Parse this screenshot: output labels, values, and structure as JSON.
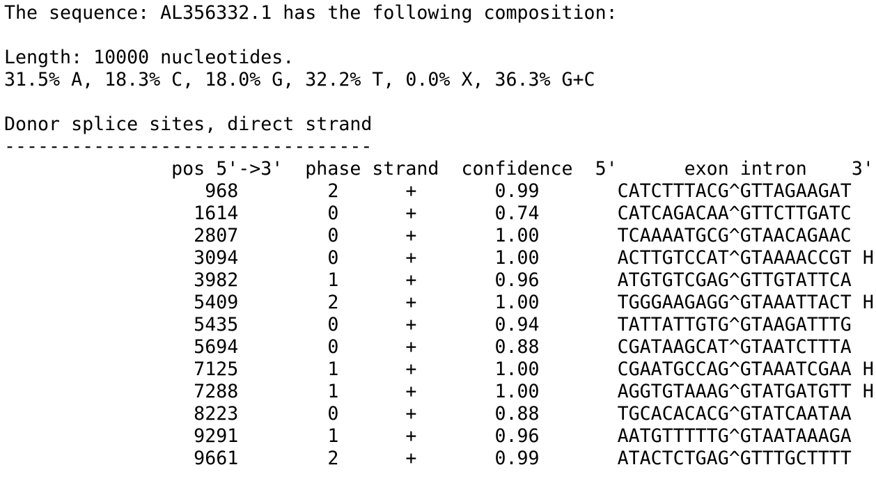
{
  "header": {
    "title_line": "The sequence: AL356332.1 has the following composition:",
    "length_line": "Length: 10000 nucleotides.",
    "composition_line": "31.5% A, 18.3% C, 18.0% G, 32.2% T, 0.0% X, 36.3% G+C"
  },
  "section": {
    "title": "Donor splice sites, direct strand",
    "underline": "---------------------------------"
  },
  "table": {
    "columns": [
      "pos 5'->3'",
      "phase",
      "strand",
      "confidence",
      "5'",
      "exon intron",
      "3'"
    ],
    "header_line": "               pos 5'->3'  phase strand  confidence  5'      exon intron    3'",
    "rows": [
      "                  968        2      +       0.99       CATCTTTACG^GTTAGAAGAT",
      "                 1614        0      +       0.74       CATCAGACAA^GTTCTTGATC",
      "                 2807        0      +       1.00       TCAAAATGCG^GTAACAGAAC",
      "                 3094        0      +       1.00       ACTTGTCCAT^GTAAAACCGT H",
      "                 3982        1      +       0.96       ATGTGTCGAG^GTTGTATTCA",
      "                 5409        2      +       1.00       TGGGAAGAGG^GTAAATTACT H",
      "                 5435        0      +       0.94       TATTATTGTG^GTAAGATTTG",
      "                 5694        0      +       0.88       CGATAAGCAT^GTAATCTTTA",
      "                 7125        1      +       1.00       CGAATGCCAG^GTAAATCGAA H",
      "                 7288        1      +       1.00       AGGTGTAAAG^GTATGATGTT H",
      "                 8223        0      +       0.88       TGCACACACG^GTATCAATAA",
      "                 9291        1      +       0.96       AATGTTTTTG^GTAATAAAGA",
      "                 9661        2      +       0.99       ATACTCTGAG^GTTTGCTTTT"
    ]
  }
}
